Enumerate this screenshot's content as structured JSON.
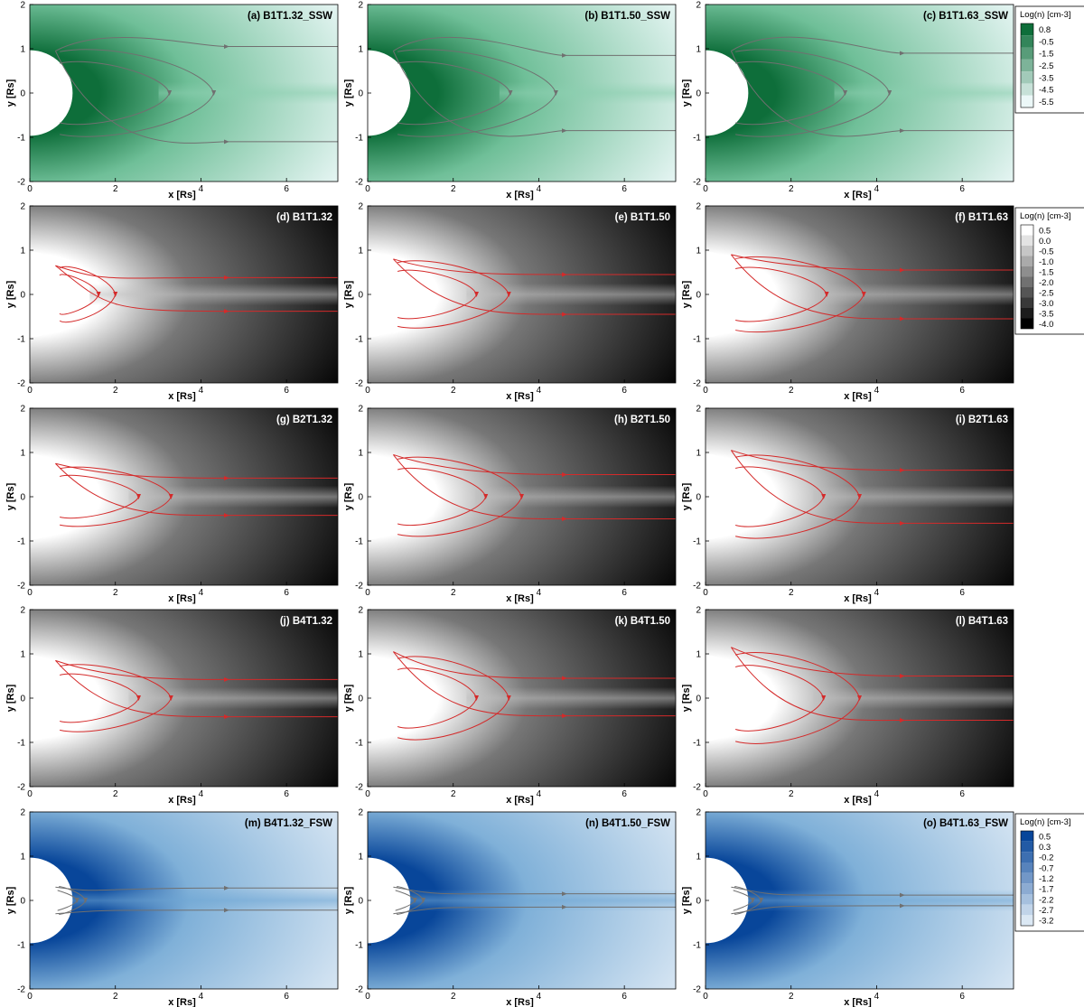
{
  "chart_data": {
    "type": "heatmap",
    "grid_rows": 5,
    "grid_cols": 3,
    "xlim": [
      0,
      7.2
    ],
    "ylim": [
      -2,
      2
    ],
    "xticks": [
      0,
      2,
      4,
      6
    ],
    "yticks": [
      -2,
      -1,
      0,
      1,
      2
    ],
    "xlabel": "x [Rs]",
    "ylabel": "y [Rs]",
    "colorbars": [
      {
        "row": 0,
        "title": "Log(n) [cm-3]",
        "colormap": "green",
        "levels": [
          "0.8",
          "-0.5",
          "-1.5",
          "-2.5",
          "-3.5",
          "-4.5",
          "-5.5"
        ]
      },
      {
        "row": 1,
        "title": "Log(n) [cm-3]",
        "colormap": "gray",
        "levels": [
          "0.5",
          "0.0",
          "-0.5",
          "-1.0",
          "-1.5",
          "-2.0",
          "-2.5",
          "-3.0",
          "-3.5",
          "-4.0"
        ]
      },
      {
        "row": 4,
        "title": "Log(n) [cm-3]",
        "colormap": "blue",
        "levels": [
          "0.5",
          "0.3",
          "-0.2",
          "-0.7",
          "-1.2",
          "-1.7",
          "-2.2",
          "-2.7",
          "-3.2"
        ]
      }
    ],
    "panels": [
      {
        "label": "(a) B1T1.32_SSW",
        "row": 0,
        "col": 0,
        "colormap": "green",
        "cusp_x": 4.3,
        "loop_height": 1.1,
        "open_lines": [
          [
            0.95,
            1.45,
            1.05
          ],
          [
            0.95,
            -1.45,
            -1.1
          ]
        ]
      },
      {
        "label": "(b) B1T1.50_SSW",
        "row": 0,
        "col": 1,
        "colormap": "green",
        "cusp_x": 4.4,
        "loop_height": 1.1,
        "open_lines": [
          [
            0.95,
            1.5,
            0.85
          ],
          [
            0.95,
            -1.5,
            -0.85
          ]
        ]
      },
      {
        "label": "(c) B1T1.63_SSW",
        "row": 0,
        "col": 2,
        "colormap": "green",
        "cusp_x": 4.3,
        "loop_height": 1.1,
        "open_lines": [
          [
            0.95,
            1.5,
            0.9
          ],
          [
            0.95,
            -1.5,
            -0.85
          ]
        ]
      },
      {
        "label": "(d) B1T1.32",
        "row": 1,
        "col": 0,
        "colormap": "gray",
        "cusp_x": 2.0,
        "loop_height": 0.7,
        "open_lines": [
          [
            0.65,
            0.3,
            0.38
          ],
          [
            0.65,
            -0.3,
            -0.38
          ]
        ]
      },
      {
        "label": "(e) B1T1.50",
        "row": 1,
        "col": 1,
        "colormap": "gray",
        "cusp_x": 3.3,
        "loop_height": 0.85,
        "open_lines": [
          [
            0.8,
            0.45,
            0.45
          ],
          [
            0.8,
            -0.45,
            -0.45
          ]
        ]
      },
      {
        "label": "(f) B1T1.63",
        "row": 1,
        "col": 2,
        "colormap": "gray",
        "cusp_x": 3.7,
        "loop_height": 0.95,
        "open_lines": [
          [
            0.9,
            0.6,
            0.55
          ],
          [
            0.9,
            -0.6,
            -0.55
          ]
        ]
      },
      {
        "label": "(g) B2T1.32",
        "row": 2,
        "col": 0,
        "colormap": "gray",
        "cusp_x": 3.3,
        "loop_height": 0.75,
        "open_lines": [
          [
            0.75,
            0.45,
            0.42
          ],
          [
            0.75,
            -0.45,
            -0.42
          ]
        ]
      },
      {
        "label": "(h) B2T1.50",
        "row": 2,
        "col": 1,
        "colormap": "gray",
        "cusp_x": 3.6,
        "loop_height": 1.0,
        "open_lines": [
          [
            0.95,
            0.55,
            0.5
          ],
          [
            0.95,
            -0.55,
            -0.5
          ]
        ]
      },
      {
        "label": "(i) B2T1.63",
        "row": 2,
        "col": 2,
        "colormap": "gray",
        "cusp_x": 3.6,
        "loop_height": 1.05,
        "open_lines": [
          [
            1.05,
            0.65,
            0.6
          ],
          [
            1.05,
            -0.65,
            -0.6
          ]
        ]
      },
      {
        "label": "(j) B4T1.32",
        "row": 3,
        "col": 0,
        "colormap": "gray",
        "cusp_x": 3.3,
        "loop_height": 0.85,
        "open_lines": [
          [
            0.85,
            0.45,
            0.42
          ],
          [
            0.85,
            -0.45,
            -0.42
          ]
        ]
      },
      {
        "label": "(k) B4T1.50",
        "row": 3,
        "col": 1,
        "colormap": "gray",
        "cusp_x": 3.3,
        "loop_height": 1.05,
        "open_lines": [
          [
            1.05,
            0.45,
            0.45
          ],
          [
            1.05,
            -0.45,
            -0.4
          ]
        ]
      },
      {
        "label": "(l) B4T1.63",
        "row": 3,
        "col": 2,
        "colormap": "gray",
        "cusp_x": 3.6,
        "loop_height": 1.15,
        "open_lines": [
          [
            1.15,
            0.6,
            0.5
          ],
          [
            1.15,
            -0.6,
            -0.5
          ]
        ]
      },
      {
        "label": "(m) B4T1.32_FSW",
        "row": 4,
        "col": 0,
        "colormap": "blue",
        "cusp_x": 1.3,
        "loop_height": 0.35,
        "open_lines": [
          [
            0.3,
            0.18,
            0.28
          ],
          [
            -0.3,
            -0.22,
            -0.22
          ]
        ]
      },
      {
        "label": "(n) B4T1.50_FSW",
        "row": 4,
        "col": 1,
        "colormap": "blue",
        "cusp_x": 1.3,
        "loop_height": 0.35,
        "open_lines": [
          [
            0.3,
            0.12,
            0.15
          ],
          [
            -0.3,
            -0.15,
            -0.15
          ]
        ]
      },
      {
        "label": "(o) B4T1.63_FSW",
        "row": 4,
        "col": 2,
        "colormap": "blue",
        "cusp_x": 1.3,
        "loop_height": 0.35,
        "open_lines": [
          [
            0.3,
            0.1,
            0.12
          ],
          [
            -0.3,
            -0.12,
            -0.12
          ]
        ]
      }
    ]
  },
  "colors": {
    "green_dark": "#0e6e3a",
    "green_light": "#ecf8f8",
    "gray_bright": "#ffffff",
    "gray_dark": "#000000",
    "blue_dark": "#08469a",
    "blue_light": "#dbe8f4",
    "fieldline_red": "#d42a2a",
    "fieldline_gray": "#707070"
  }
}
